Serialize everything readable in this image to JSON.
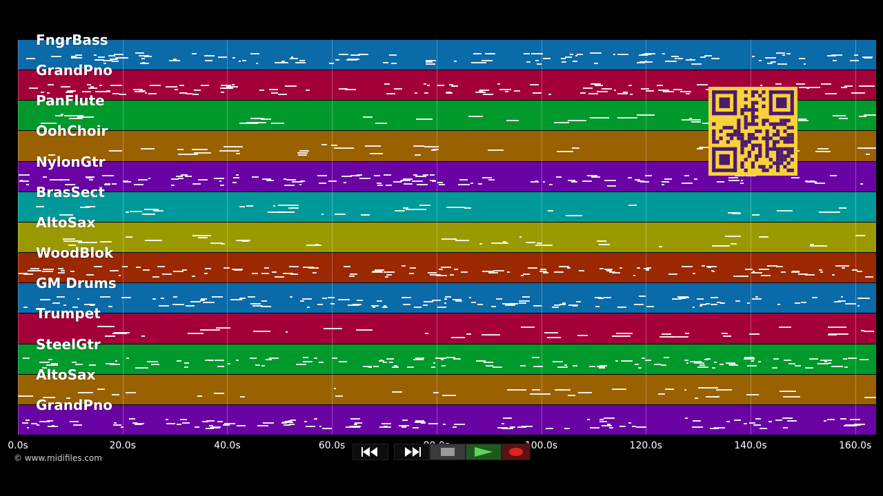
{
  "tracks": [
    {
      "name": "FngrBass",
      "color": "#0b6aa8"
    },
    {
      "name": "GrandPno",
      "color": "#a3003a"
    },
    {
      "name": "PanFlute",
      "color": "#00992c"
    },
    {
      "name": "OohChoir",
      "color": "#9a6100"
    },
    {
      "name": "NylonGtr",
      "color": "#6a03a3"
    },
    {
      "name": "BrasSect",
      "color": "#009999"
    },
    {
      "name": "AltoSax",
      "color": "#9a9a00"
    },
    {
      "name": "WoodBlok",
      "color": "#9a2800"
    },
    {
      "name": "GM Drums",
      "color": "#0b6aa8"
    },
    {
      "name": "Trumpet",
      "color": "#a3003a"
    },
    {
      "name": "SteelGtr",
      "color": "#00992c"
    },
    {
      "name": "AltoSax",
      "color": "#9a6100"
    },
    {
      "name": "GrandPno",
      "color": "#6a03a3"
    }
  ],
  "timeline": {
    "ticks": [
      "0.0s",
      "20.0s",
      "40.0s",
      "60.0s",
      "80.0s",
      "100.0s",
      "120.0s",
      "140.0s",
      "160.0s"
    ],
    "duration_seconds": 164
  },
  "copyright": "© www.midifiles.com",
  "qr_code": {
    "icon": "qr-code",
    "color": "#f7d23a",
    "module_color": "#4b1a6e"
  },
  "controls": [
    {
      "name": "rewind-button",
      "icon": "rewind-icon"
    },
    {
      "name": "fast-forward-button",
      "icon": "fast-forward-icon"
    },
    {
      "name": "stop-button",
      "icon": "stop-icon"
    },
    {
      "name": "play-button",
      "icon": "play-icon"
    },
    {
      "name": "record-button",
      "icon": "record-icon"
    }
  ]
}
